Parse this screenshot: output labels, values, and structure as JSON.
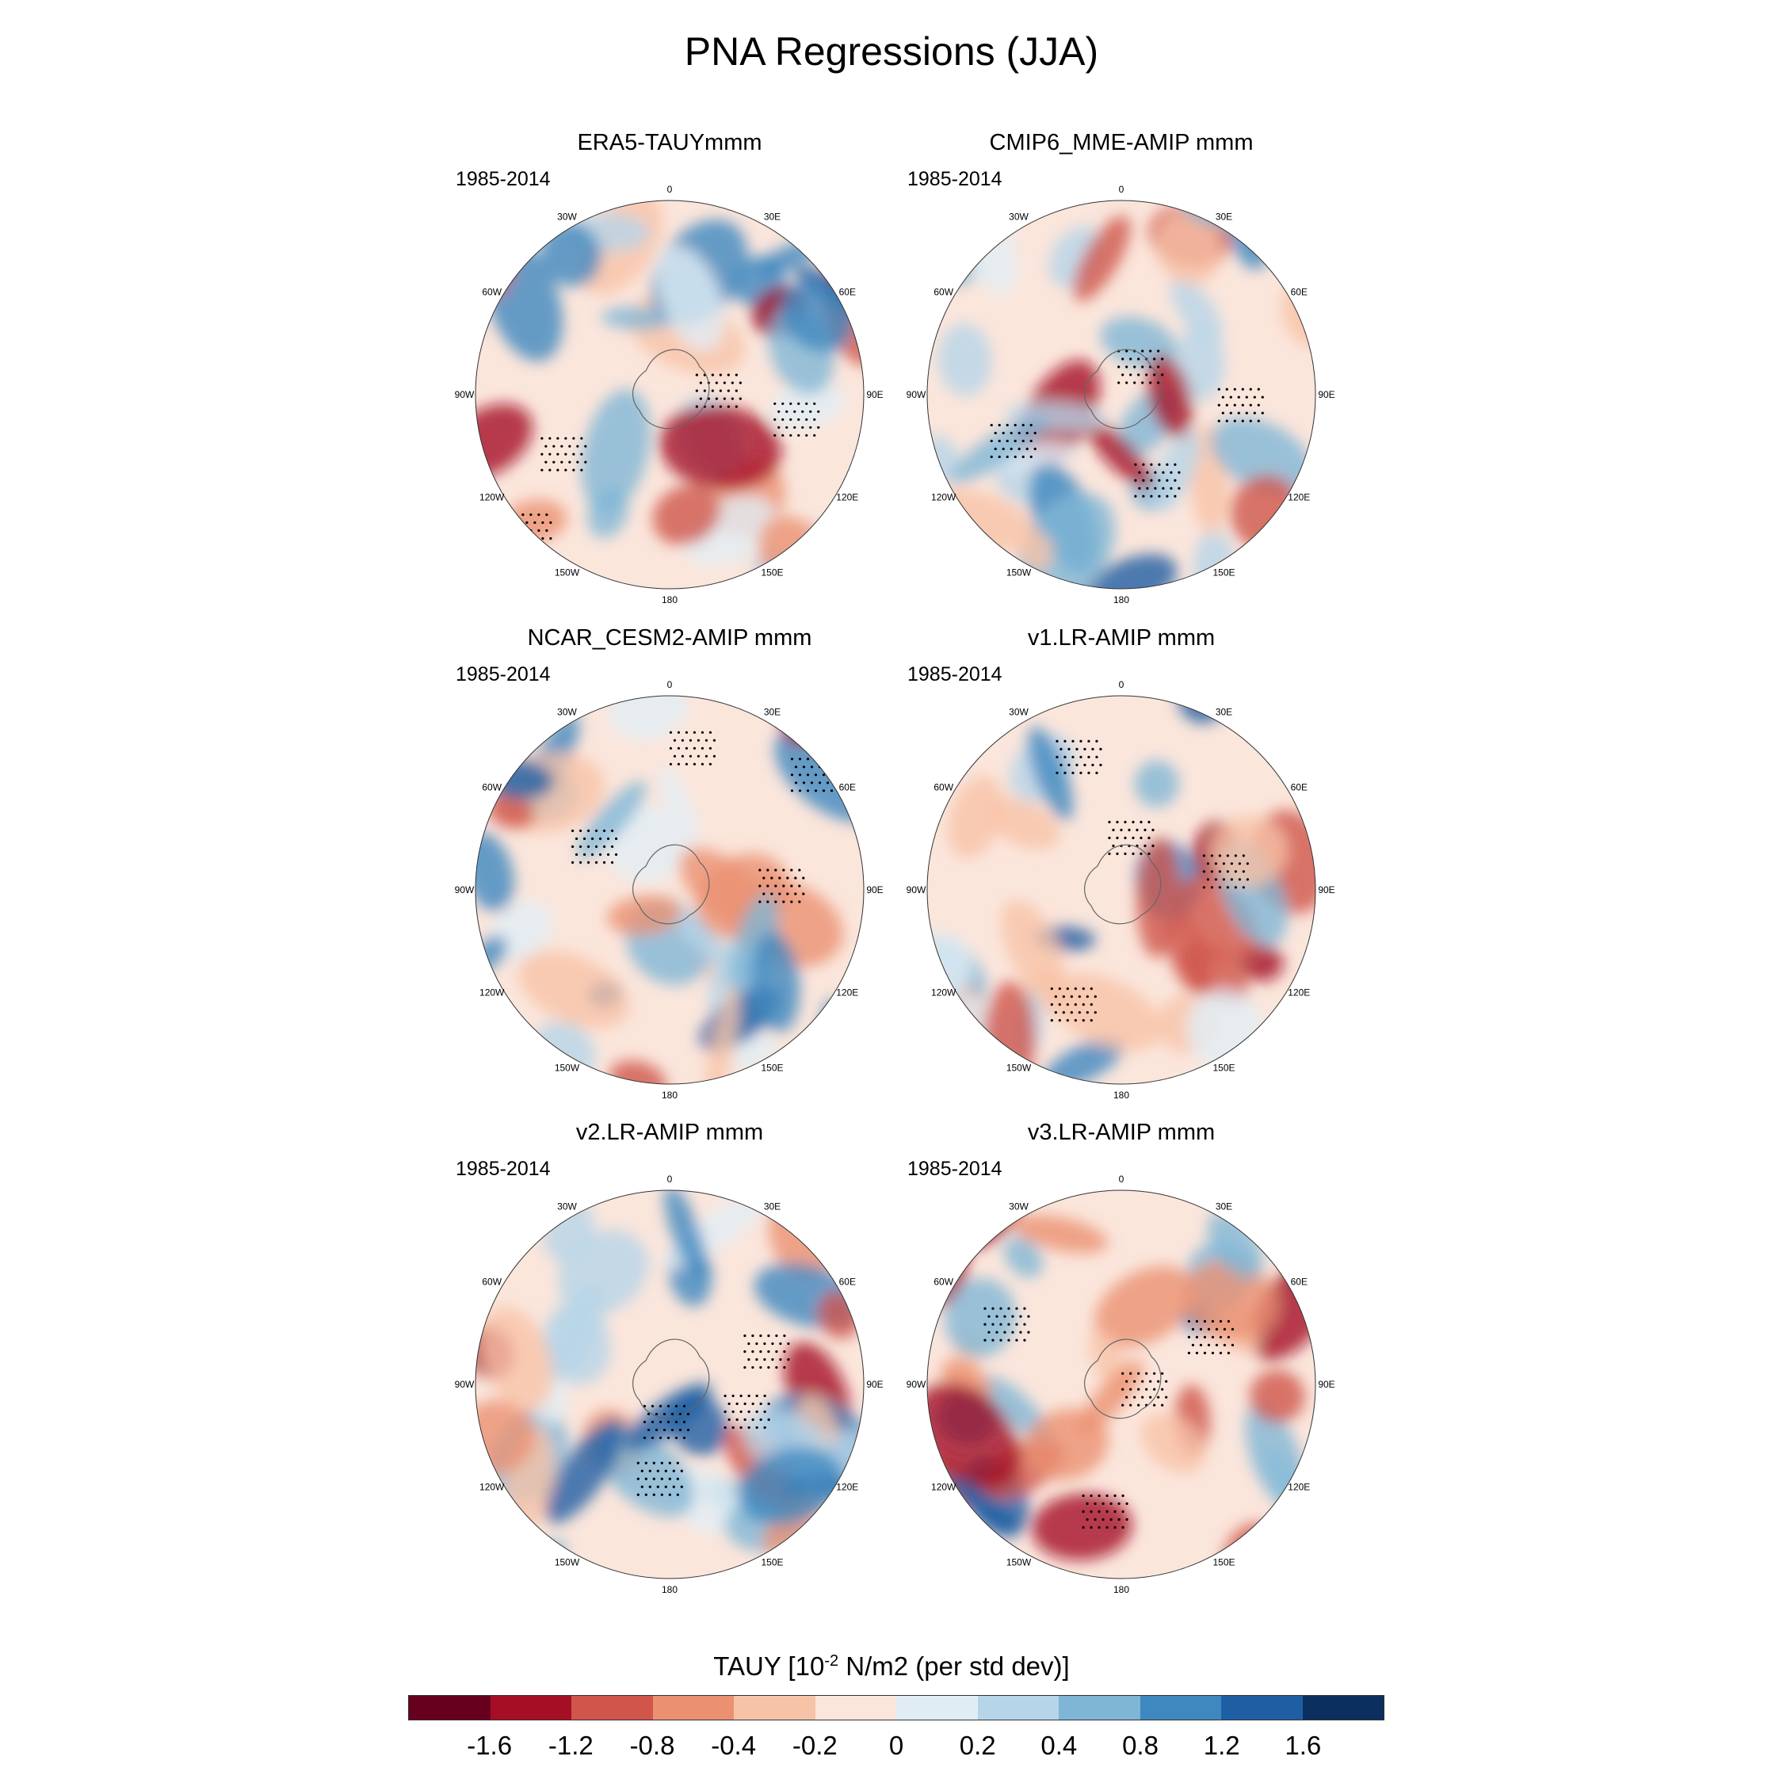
{
  "figure": {
    "title": "PNA Regressions (JJA)",
    "colorbar_title_prefix": "TAUY [10",
    "colorbar_title_exp": "-2",
    "colorbar_title_suffix": " N/m2 (per std dev)]"
  },
  "colorbar": {
    "colors": [
      "#67001f",
      "#a50f25",
      "#d0554b",
      "#eb9172",
      "#f7c3a7",
      "#fbe6dc",
      "#e1edf5",
      "#b6d5e8",
      "#7fb6d6",
      "#3e88bf",
      "#1e5fa4",
      "#0b305f"
    ],
    "labels": [
      "-1.6",
      "-1.2",
      "-0.8",
      "-0.4",
      "-0.2",
      "0",
      "0.2",
      "0.4",
      "0.8",
      "1.2",
      "1.6"
    ]
  },
  "longitude_labels": [
    "0",
    "30E",
    "60E",
    "90E",
    "120E",
    "150E",
    "180",
    "150W",
    "120W",
    "90W",
    "60W",
    "30W"
  ],
  "panels": [
    {
      "title": "ERA5-TAUYmmm",
      "period": "1985-2014"
    },
    {
      "title": "CMIP6_MME-AMIP  mmm",
      "period": "1985-2014"
    },
    {
      "title": "NCAR_CESM2-AMIP  mmm",
      "period": "1985-2014"
    },
    {
      "title": "v1.LR-AMIP  mmm",
      "period": "1985-2014"
    },
    {
      "title": "v2.LR-AMIP  mmm",
      "period": "1985-2014"
    },
    {
      "title": "v3.LR-AMIP  mmm",
      "period": "1985-2014"
    }
  ],
  "chart_data": {
    "type": "polar-map-panels",
    "title": "PNA Regressions (JJA)",
    "variable": "TAUY",
    "units": "10^-2 N/m2 (per std dev)",
    "levels": [
      -1.6,
      -1.2,
      -0.8,
      -0.4,
      -0.2,
      0,
      0.2,
      0.4,
      0.8,
      1.2,
      1.6
    ],
    "panels": [
      "ERA5-TAUYmmm",
      "CMIP6_MME-AMIP  mmm",
      "NCAR_CESM2-AMIP  mmm",
      "v1.LR-AMIP  mmm",
      "v2.LR-AMIP  mmm",
      "v3.LR-AMIP  mmm"
    ]
  }
}
